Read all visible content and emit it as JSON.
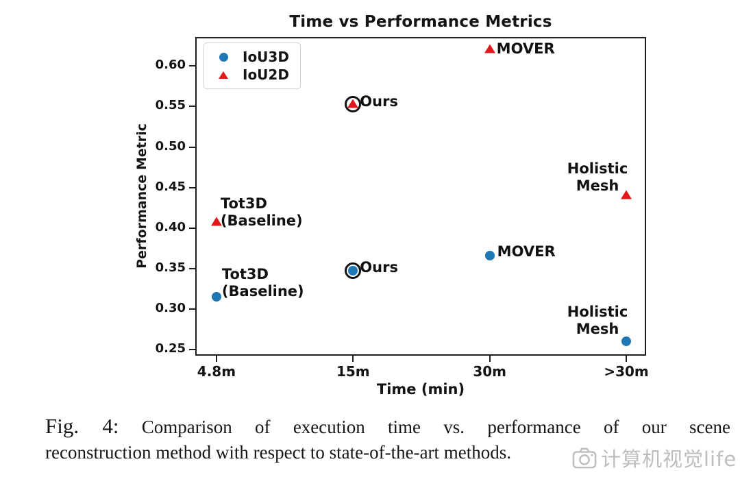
{
  "caption": {
    "prefix": "Fig. 4:",
    "line1_rest": "Comparison of execution time vs. performance of our scene",
    "line2": "reconstruction method with respect to state-of-the-art methods."
  },
  "watermark": {
    "icon": "camera-icon",
    "text": "计算机视觉life"
  },
  "legend": {
    "items": [
      {
        "label": "IoU3D",
        "marker": "circle",
        "color": "#1f77b4"
      },
      {
        "label": "IoU2D",
        "marker": "triangle",
        "color": "#e2191c"
      }
    ]
  },
  "chart_data": {
    "type": "scatter",
    "title": "Time vs Performance Metrics",
    "xlabel": "Time (min)",
    "ylabel": "Performance Metric",
    "categories": [
      "4.8m",
      "15m",
      "30m",
      ">30m"
    ],
    "y_ticks": [
      {
        "v": 0.25,
        "label": "0.25"
      },
      {
        "v": 0.3,
        "label": "0.30"
      },
      {
        "v": 0.35,
        "label": "0.35"
      },
      {
        "v": 0.4,
        "label": "0.40"
      },
      {
        "v": 0.45,
        "label": "0.45"
      },
      {
        "v": 0.5,
        "label": "0.50"
      },
      {
        "v": 0.55,
        "label": "0.55"
      },
      {
        "v": 0.6,
        "label": "0.60"
      }
    ],
    "ylim": [
      0.242,
      0.636
    ],
    "grid": false,
    "legend_position": "upper left",
    "x_margin_frac": 0.047,
    "x_span_frac": 0.909,
    "series": [
      {
        "name": "IoU3D",
        "marker": "circle",
        "color": "#1f77b4",
        "points": [
          {
            "label": "Tot3D\n(Baseline)",
            "x": "4.8m",
            "y": 0.315,
            "ring": false,
            "label_dx": 8,
            "label_dy": -45,
            "label_align": "left"
          },
          {
            "label": "Ours",
            "x": "15m",
            "y": 0.347,
            "ring": true,
            "label_dx": 10,
            "label_dy": -17,
            "label_align": "left"
          },
          {
            "label": "MOVER",
            "x": "30m",
            "y": 0.366,
            "ring": false,
            "label_dx": 11,
            "label_dy": -18,
            "label_align": "left"
          },
          {
            "label": "Holistic\nMesh",
            "x": ">30m",
            "y": 0.26,
            "ring": false,
            "label_dx": -92,
            "label_dy": -55,
            "label_align": "center",
            "label_width": 100
          }
        ]
      },
      {
        "name": "IoU2D",
        "marker": "triangle",
        "color": "#e2191c",
        "points": [
          {
            "label": "Tot3D\n(Baseline)",
            "x": "4.8m",
            "y": 0.407,
            "ring": false,
            "label_dx": 6,
            "label_dy": -39,
            "label_align": "left"
          },
          {
            "label": "Ours",
            "x": "15m",
            "y": 0.553,
            "ring": true,
            "label_dx": 10,
            "label_dy": -16,
            "label_align": "left"
          },
          {
            "label": "MOVER",
            "x": "30m",
            "y": 0.621,
            "ring": false,
            "label_dx": 10,
            "label_dy": -13,
            "label_align": "left"
          },
          {
            "label": "Holistic\nMesh",
            "x": ">30m",
            "y": 0.44,
            "ring": false,
            "label_dx": -92,
            "label_dy": -51,
            "label_align": "center",
            "label_width": 100
          }
        ]
      }
    ]
  }
}
